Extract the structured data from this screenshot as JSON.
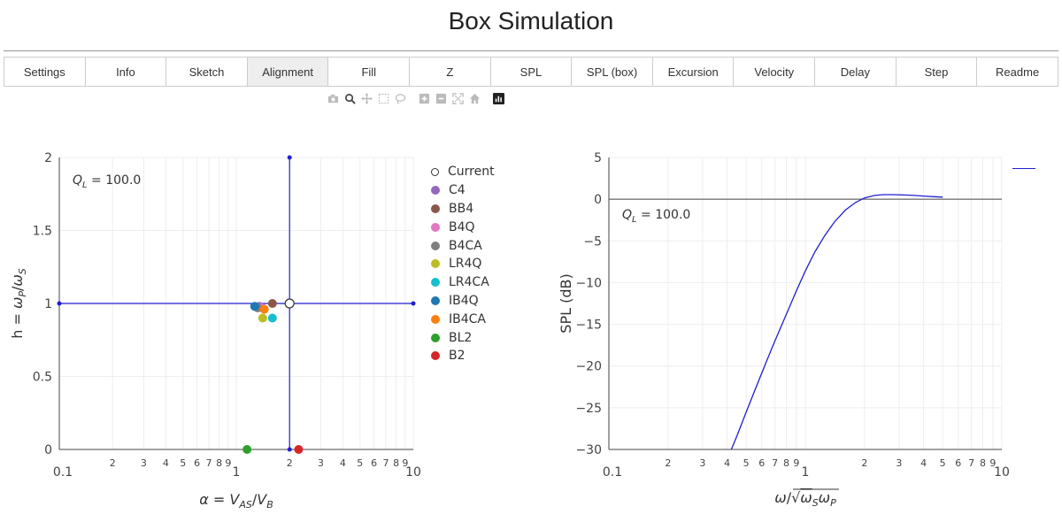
{
  "app": {
    "title": "Box Simulation"
  },
  "tabs": [
    {
      "label": "Settings",
      "active": false
    },
    {
      "label": "Info",
      "active": false
    },
    {
      "label": "Sketch",
      "active": false
    },
    {
      "label": "Alignment",
      "active": true
    },
    {
      "label": "Fill",
      "active": false
    },
    {
      "label": "Z",
      "active": false
    },
    {
      "label": "SPL",
      "active": false
    },
    {
      "label": "SPL (box)",
      "active": false
    },
    {
      "label": "Excursion",
      "active": false
    },
    {
      "label": "Velocity",
      "active": false
    },
    {
      "label": "Delay",
      "active": false
    },
    {
      "label": "Step",
      "active": false
    },
    {
      "label": "Readme",
      "active": false
    }
  ],
  "modebar": [
    "camera-icon",
    "zoom-icon",
    "pan-icon",
    "box-select-icon",
    "lasso-icon",
    "zoom-in-icon",
    "zoom-out-icon",
    "autoscale-icon",
    "home-icon",
    "plotly-logo-icon"
  ],
  "colors": {
    "accent": "#1f1fd0",
    "grid": "#eeeeee"
  },
  "chart_data": [
    {
      "type": "scatter",
      "annotation": "Q_L = 100.0",
      "xlabel": "α = V_AS / V_B",
      "ylabel": "h = ω_P / ω_S",
      "xscale": "log",
      "xlim": [
        0.1,
        10
      ],
      "ylim": [
        0,
        2
      ],
      "x_ticks": [
        "0.1",
        "2",
        "3",
        "4",
        "5",
        "6",
        "7",
        "8",
        "9",
        "1",
        "2",
        "3",
        "4",
        "5",
        "6",
        "7",
        "8",
        "9",
        "10"
      ],
      "y_ticks": [
        "0",
        "0.5",
        "1",
        "1.5",
        "2"
      ],
      "crosshair": {
        "x": 2.0,
        "y": 1.0,
        "color": "#1f1fd0"
      },
      "legend_position": "right",
      "series": [
        {
          "name": "Current",
          "color": "#ffffff",
          "hollow": true,
          "points": [
            [
              2.0,
              1.0
            ]
          ]
        },
        {
          "name": "C4",
          "color": "#9467bd",
          "points": [
            [
              1.35,
              0.98
            ]
          ]
        },
        {
          "name": "BB4",
          "color": "#8c564b",
          "points": [
            [
              1.6,
              1.0
            ]
          ]
        },
        {
          "name": "B4Q",
          "color": "#e377c2",
          "points": [
            [
              1.4,
              0.97
            ]
          ]
        },
        {
          "name": "B4CA",
          "color": "#7f7f7f",
          "points": [
            [
              1.32,
              0.97
            ]
          ]
        },
        {
          "name": "LR4Q",
          "color": "#bcbd22",
          "points": [
            [
              1.41,
              0.9
            ]
          ]
        },
        {
          "name": "LR4CA",
          "color": "#17becf",
          "points": [
            [
              1.6,
              0.9
            ]
          ]
        },
        {
          "name": "IB4Q",
          "color": "#1f77b4",
          "points": [
            [
              1.27,
              0.98
            ]
          ]
        },
        {
          "name": "IB4CA",
          "color": "#ff7f0e",
          "points": [
            [
              1.44,
              0.96
            ]
          ]
        },
        {
          "name": "BL2",
          "color": "#2ca02c",
          "points": [
            [
              1.15,
              0.0
            ]
          ]
        },
        {
          "name": "B2",
          "color": "#d62728",
          "points": [
            [
              2.25,
              0.0
            ]
          ]
        }
      ]
    },
    {
      "type": "line",
      "annotation": "Q_L = 100.0",
      "xlabel": "ω / √(ω_S ω_P)",
      "ylabel": "SPL (dB)",
      "xscale": "log",
      "xlim": [
        0.1,
        10
      ],
      "ylim": [
        -30,
        5
      ],
      "x_ticks": [
        "0.1",
        "2",
        "3",
        "4",
        "5",
        "6",
        "7",
        "8",
        "9",
        "1",
        "2",
        "3",
        "4",
        "5",
        "6",
        "7",
        "8",
        "9",
        "10"
      ],
      "y_ticks": [
        "5",
        "0",
        "−5",
        "−10",
        "−15",
        "−20",
        "−25",
        "−30"
      ],
      "zero_line": 0,
      "series": [
        {
          "name": "",
          "color": "#1f1fd0",
          "x": [
            0.42,
            0.45,
            0.5,
            0.56,
            0.63,
            0.7,
            0.8,
            0.9,
            1.0,
            1.12,
            1.26,
            1.41,
            1.6,
            1.8,
            2.0,
            2.25,
            2.5,
            2.8,
            3.2,
            3.6,
            4.0,
            4.5,
            5.0
          ],
          "y": [
            -30,
            -28.3,
            -25.5,
            -22.6,
            -19.6,
            -17.0,
            -13.8,
            -11.0,
            -8.6,
            -6.3,
            -4.3,
            -2.7,
            -1.3,
            -0.4,
            0.15,
            0.45,
            0.55,
            0.55,
            0.5,
            0.45,
            0.38,
            0.3,
            0.25
          ]
        }
      ]
    }
  ]
}
